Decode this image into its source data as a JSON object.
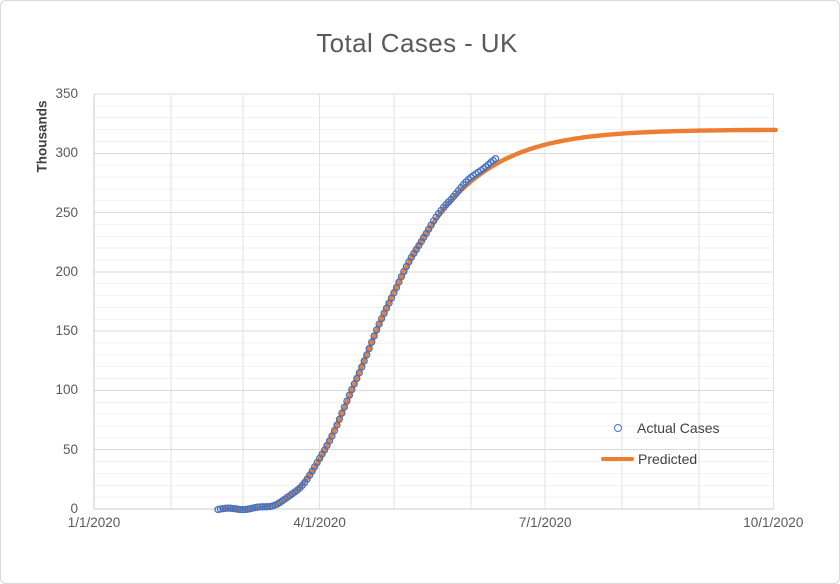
{
  "chart_data": {
    "type": "scatter",
    "title": "Total Cases - UK",
    "ylabel": "Thousands",
    "xlabel": "",
    "x_tick_labels": [
      "1/1/2020",
      "4/1/2020",
      "7/1/2020",
      "10/1/2020"
    ],
    "x_tick_days": [
      0,
      91,
      182,
      274
    ],
    "month_gridline_days": [
      0,
      31,
      60,
      91,
      121,
      152,
      182,
      213,
      244,
      274
    ],
    "y_ticks": [
      0,
      50,
      100,
      150,
      200,
      250,
      300,
      350
    ],
    "ylim": [
      0,
      350
    ],
    "xlim_days": [
      0,
      275
    ],
    "grid": {
      "major_step": 50,
      "minor_step": 10,
      "major_color": "#d9d9d9",
      "minor_color": "#f2f2f2",
      "vertical_color": "#e2e2e2",
      "axis_color": "#c9c9c9"
    },
    "legend": {
      "position": "right-center",
      "items": [
        {
          "label": "Actual Cases",
          "marker": "open-circle",
          "color": "#4472C4"
        },
        {
          "label": "Predicted",
          "marker": "line",
          "color": "#ED7D31"
        }
      ]
    },
    "series": [
      {
        "name": "Actual Cases",
        "type": "scatter",
        "marker": "open-circle",
        "color": "#4472C4",
        "marker_radius": 3,
        "marker_stroke_width": 1.3,
        "days": {
          "start": 50,
          "end": 162,
          "step": 1
        },
        "model": {
          "kind": "gompertz",
          "L": 320,
          "b": 101.6,
          "c": 0.043,
          "offset_ramp": {
            "from_day": 130,
            "per_day": 0.13
          },
          "jitter": {
            "amp": 0.7,
            "freq": 0.52,
            "phase": -1.5
          }
        },
        "weekly_sample_thousands": [
          [
            50,
            0
          ],
          [
            57,
            0.1
          ],
          [
            64,
            0.5
          ],
          [
            71,
            2.6
          ],
          [
            78,
            9.2
          ],
          [
            85,
            23.0
          ],
          [
            92,
            45.9
          ],
          [
            99,
            75.9
          ],
          [
            106,
            110.4
          ],
          [
            113,
            145.5
          ],
          [
            120,
            178.6
          ],
          [
            127,
            207.7
          ],
          [
            134,
            232.9
          ],
          [
            141,
            253.9
          ],
          [
            148,
            270.8
          ],
          [
            155,
            284.3
          ],
          [
            162,
            294.9
          ]
        ]
      },
      {
        "name": "Predicted",
        "type": "line",
        "color": "#ED7D31",
        "width": 4.4,
        "days": {
          "start": 52,
          "end": 275,
          "step": 1
        },
        "model": {
          "kind": "gompertz",
          "L": 320,
          "b": 101.6,
          "c": 0.043
        },
        "weekly_sample_thousands": [
          [
            52,
            0
          ],
          [
            64,
            0.5
          ],
          [
            78,
            9.2
          ],
          [
            92,
            45.9
          ],
          [
            106,
            110.4
          ],
          [
            120,
            178.6
          ],
          [
            134,
            232.4
          ],
          [
            148,
            268.5
          ],
          [
            162,
            290.7
          ],
          [
            182,
            307.3
          ],
          [
            213,
            316.6
          ],
          [
            244,
            319.1
          ],
          [
            274,
            319.8
          ]
        ]
      }
    ]
  }
}
